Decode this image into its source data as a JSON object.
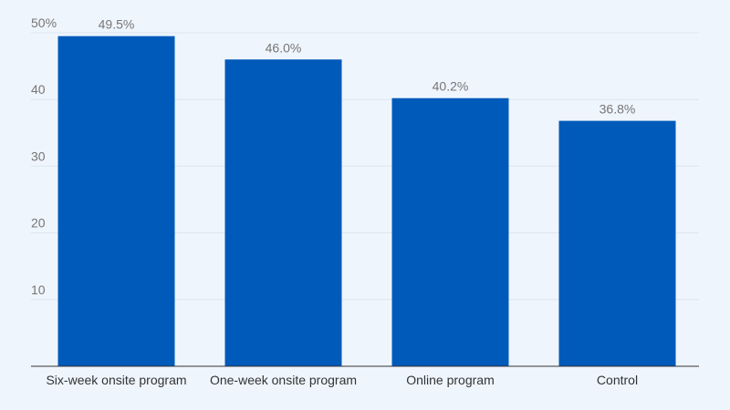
{
  "chart_data": {
    "type": "bar",
    "title": "",
    "xlabel": "",
    "ylabel": "",
    "categories": [
      "Six-week onsite program",
      "One-week onsite program",
      "Online program",
      "Control"
    ],
    "values": [
      49.5,
      46.0,
      40.2,
      36.8
    ],
    "data_labels": [
      "49.5%",
      "46.0%",
      "40.2%",
      "36.8%"
    ],
    "ylim": [
      0,
      50
    ],
    "yticks": [
      10,
      20,
      30,
      40,
      50
    ],
    "ytick_labels": [
      "10",
      "20",
      "30",
      "40",
      "50%"
    ],
    "grid": true,
    "colors": {
      "bar": "#005ab9",
      "background": "#eff5fd",
      "grid": "#dde5ef",
      "axis": "#333333"
    }
  }
}
